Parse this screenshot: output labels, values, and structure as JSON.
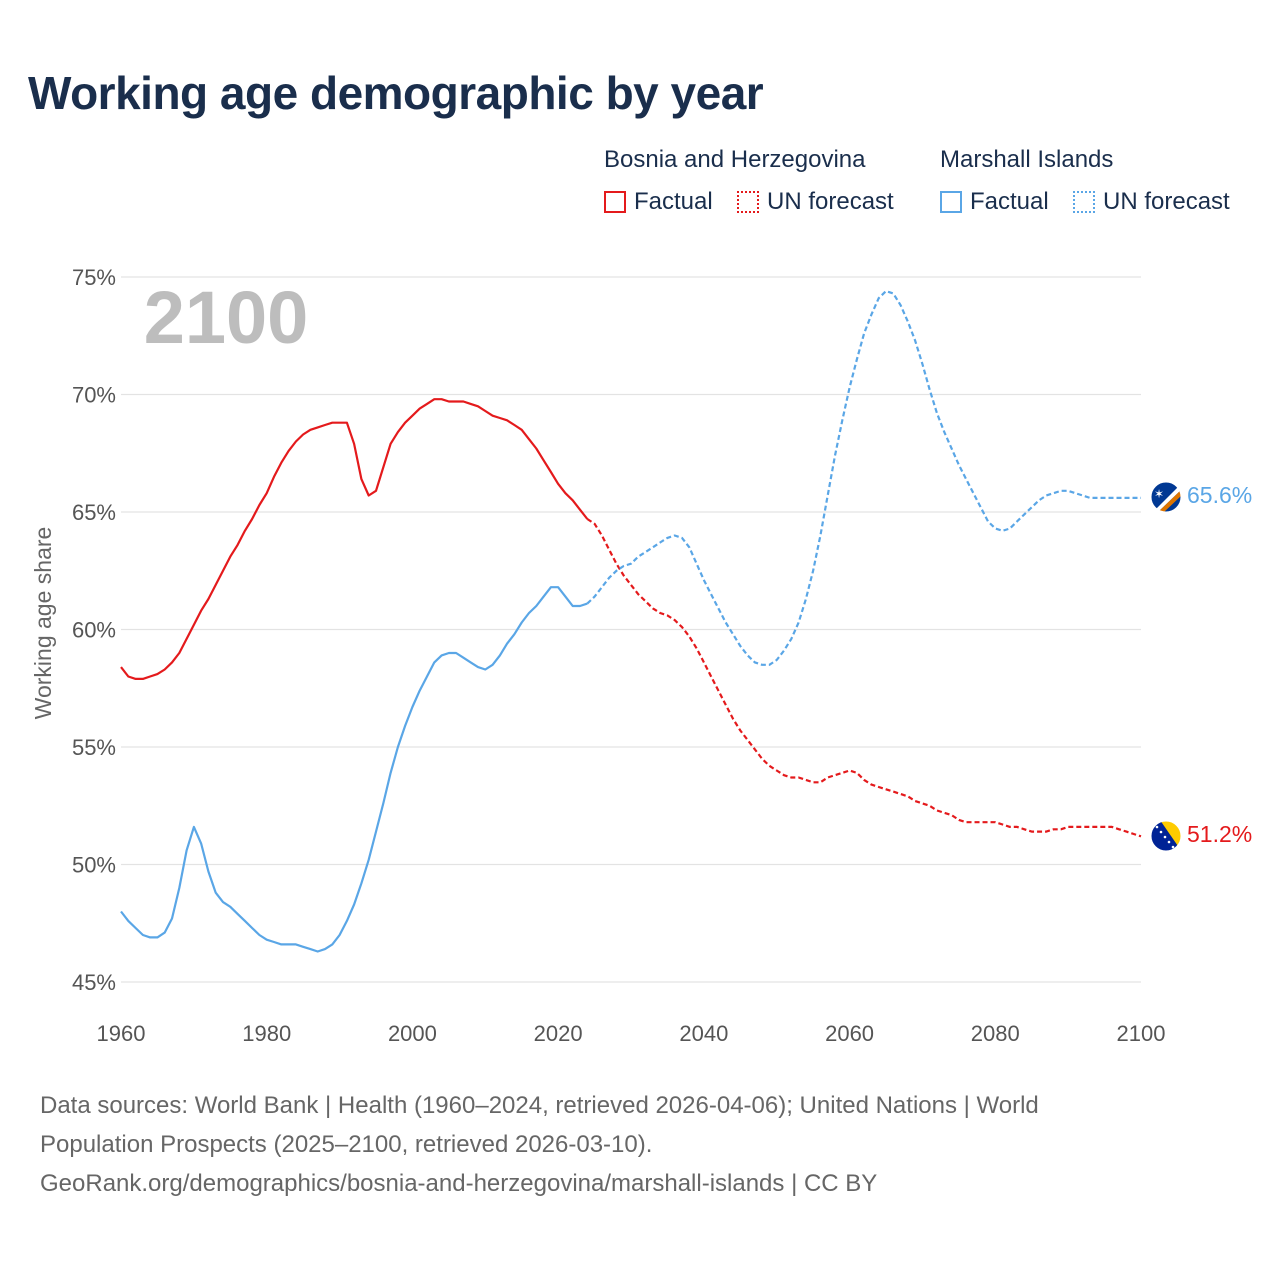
{
  "title": "Working age demographic by year",
  "legend": {
    "groups": [
      {
        "country": "Bosnia and Herzegovina",
        "factual_label": "Factual",
        "forecast_label": "UN forecast",
        "color": "#e41a1c"
      },
      {
        "country": "Marshall Islands",
        "factual_label": "Factual",
        "forecast_label": "UN forecast",
        "color": "#5aa6e6"
      }
    ]
  },
  "year_display": "2100",
  "sources": {
    "line1": "Data sources: World Bank | Health (1960–2024, retrieved 2026-04-06); United Nations | World",
    "line2": "Population Prospects (2025–2100, retrieved 2026-03-10).",
    "line3": "GeoRank.org/demographics/bosnia-and-herzegovina/marshall-islands | CC BY"
  },
  "chart_data": {
    "type": "line",
    "title": "Working age demographic by year",
    "xlabel": "",
    "ylabel": "Working age share",
    "xlim": [
      1960,
      2100
    ],
    "ylim": [
      45,
      75
    ],
    "x_ticks": [
      1960,
      1980,
      2000,
      2020,
      2040,
      2060,
      2080,
      2100
    ],
    "y_ticks": [
      45,
      50,
      55,
      60,
      65,
      70,
      75
    ],
    "y_tick_labels": [
      "45%",
      "50%",
      "55%",
      "60%",
      "65%",
      "70%",
      "75%"
    ],
    "grid": true,
    "factual_end_year": 2024,
    "series": [
      {
        "name": "Bosnia and Herzegovina",
        "color": "#e41a1c",
        "end_label": "51.2%",
        "flag": "bosnia-and-herzegovina",
        "points": [
          [
            1960,
            58.4
          ],
          [
            1961,
            58.0
          ],
          [
            1962,
            57.9
          ],
          [
            1963,
            57.9
          ],
          [
            1964,
            58.0
          ],
          [
            1965,
            58.1
          ],
          [
            1966,
            58.3
          ],
          [
            1967,
            58.6
          ],
          [
            1968,
            59.0
          ],
          [
            1969,
            59.6
          ],
          [
            1970,
            60.2
          ],
          [
            1971,
            60.8
          ],
          [
            1972,
            61.3
          ],
          [
            1973,
            61.9
          ],
          [
            1974,
            62.5
          ],
          [
            1975,
            63.1
          ],
          [
            1976,
            63.6
          ],
          [
            1977,
            64.2
          ],
          [
            1978,
            64.7
          ],
          [
            1979,
            65.3
          ],
          [
            1980,
            65.8
          ],
          [
            1981,
            66.5
          ],
          [
            1982,
            67.1
          ],
          [
            1983,
            67.6
          ],
          [
            1984,
            68.0
          ],
          [
            1985,
            68.3
          ],
          [
            1986,
            68.5
          ],
          [
            1987,
            68.6
          ],
          [
            1988,
            68.7
          ],
          [
            1989,
            68.8
          ],
          [
            1990,
            68.8
          ],
          [
            1991,
            68.8
          ],
          [
            1992,
            67.9
          ],
          [
            1993,
            66.4
          ],
          [
            1994,
            65.7
          ],
          [
            1995,
            65.9
          ],
          [
            1996,
            66.9
          ],
          [
            1997,
            67.9
          ],
          [
            1998,
            68.4
          ],
          [
            1999,
            68.8
          ],
          [
            2000,
            69.1
          ],
          [
            2001,
            69.4
          ],
          [
            2002,
            69.6
          ],
          [
            2003,
            69.8
          ],
          [
            2004,
            69.8
          ],
          [
            2005,
            69.7
          ],
          [
            2006,
            69.7
          ],
          [
            2007,
            69.7
          ],
          [
            2008,
            69.6
          ],
          [
            2009,
            69.5
          ],
          [
            2010,
            69.3
          ],
          [
            2011,
            69.1
          ],
          [
            2012,
            69.0
          ],
          [
            2013,
            68.9
          ],
          [
            2014,
            68.7
          ],
          [
            2015,
            68.5
          ],
          [
            2016,
            68.1
          ],
          [
            2017,
            67.7
          ],
          [
            2018,
            67.2
          ],
          [
            2019,
            66.7
          ],
          [
            2020,
            66.2
          ],
          [
            2021,
            65.8
          ],
          [
            2022,
            65.5
          ],
          [
            2023,
            65.1
          ],
          [
            2024,
            64.7
          ],
          [
            2025,
            64.5
          ],
          [
            2026,
            64.0
          ],
          [
            2027,
            63.4
          ],
          [
            2028,
            62.8
          ],
          [
            2029,
            62.3
          ],
          [
            2030,
            61.9
          ],
          [
            2031,
            61.5
          ],
          [
            2032,
            61.2
          ],
          [
            2033,
            60.9
          ],
          [
            2034,
            60.7
          ],
          [
            2035,
            60.6
          ],
          [
            2036,
            60.4
          ],
          [
            2037,
            60.1
          ],
          [
            2038,
            59.7
          ],
          [
            2039,
            59.2
          ],
          [
            2040,
            58.6
          ],
          [
            2041,
            58.0
          ],
          [
            2042,
            57.4
          ],
          [
            2043,
            56.8
          ],
          [
            2044,
            56.2
          ],
          [
            2045,
            55.7
          ],
          [
            2046,
            55.3
          ],
          [
            2047,
            54.9
          ],
          [
            2048,
            54.5
          ],
          [
            2049,
            54.2
          ],
          [
            2050,
            54.0
          ],
          [
            2051,
            53.8
          ],
          [
            2052,
            53.7
          ],
          [
            2053,
            53.7
          ],
          [
            2054,
            53.6
          ],
          [
            2055,
            53.5
          ],
          [
            2056,
            53.5
          ],
          [
            2057,
            53.7
          ],
          [
            2058,
            53.8
          ],
          [
            2059,
            53.9
          ],
          [
            2060,
            54.0
          ],
          [
            2061,
            53.9
          ],
          [
            2062,
            53.6
          ],
          [
            2063,
            53.4
          ],
          [
            2064,
            53.3
          ],
          [
            2065,
            53.2
          ],
          [
            2066,
            53.1
          ],
          [
            2067,
            53.0
          ],
          [
            2068,
            52.9
          ],
          [
            2069,
            52.7
          ],
          [
            2070,
            52.6
          ],
          [
            2071,
            52.5
          ],
          [
            2072,
            52.3
          ],
          [
            2073,
            52.2
          ],
          [
            2074,
            52.1
          ],
          [
            2075,
            51.9
          ],
          [
            2076,
            51.8
          ],
          [
            2077,
            51.8
          ],
          [
            2078,
            51.8
          ],
          [
            2079,
            51.8
          ],
          [
            2080,
            51.8
          ],
          [
            2081,
            51.7
          ],
          [
            2082,
            51.6
          ],
          [
            2083,
            51.6
          ],
          [
            2084,
            51.5
          ],
          [
            2085,
            51.4
          ],
          [
            2086,
            51.4
          ],
          [
            2087,
            51.4
          ],
          [
            2088,
            51.5
          ],
          [
            2089,
            51.5
          ],
          [
            2090,
            51.6
          ],
          [
            2091,
            51.6
          ],
          [
            2092,
            51.6
          ],
          [
            2093,
            51.6
          ],
          [
            2094,
            51.6
          ],
          [
            2095,
            51.6
          ],
          [
            2096,
            51.6
          ],
          [
            2097,
            51.5
          ],
          [
            2098,
            51.4
          ],
          [
            2099,
            51.3
          ],
          [
            2100,
            51.2
          ]
        ]
      },
      {
        "name": "Marshall Islands",
        "color": "#5aa6e6",
        "end_label": "65.6%",
        "flag": "marshall-islands",
        "points": [
          [
            1960,
            48.0
          ],
          [
            1961,
            47.6
          ],
          [
            1962,
            47.3
          ],
          [
            1963,
            47.0
          ],
          [
            1964,
            46.9
          ],
          [
            1965,
            46.9
          ],
          [
            1966,
            47.1
          ],
          [
            1967,
            47.7
          ],
          [
            1968,
            49.0
          ],
          [
            1969,
            50.6
          ],
          [
            1970,
            51.6
          ],
          [
            1971,
            50.9
          ],
          [
            1972,
            49.7
          ],
          [
            1973,
            48.8
          ],
          [
            1974,
            48.4
          ],
          [
            1975,
            48.2
          ],
          [
            1976,
            47.9
          ],
          [
            1977,
            47.6
          ],
          [
            1978,
            47.3
          ],
          [
            1979,
            47.0
          ],
          [
            1980,
            46.8
          ],
          [
            1981,
            46.7
          ],
          [
            1982,
            46.6
          ],
          [
            1983,
            46.6
          ],
          [
            1984,
            46.6
          ],
          [
            1985,
            46.5
          ],
          [
            1986,
            46.4
          ],
          [
            1987,
            46.3
          ],
          [
            1988,
            46.4
          ],
          [
            1989,
            46.6
          ],
          [
            1990,
            47.0
          ],
          [
            1991,
            47.6
          ],
          [
            1992,
            48.3
          ],
          [
            1993,
            49.2
          ],
          [
            1994,
            50.2
          ],
          [
            1995,
            51.4
          ],
          [
            1996,
            52.6
          ],
          [
            1997,
            53.9
          ],
          [
            1998,
            55.0
          ],
          [
            1999,
            55.9
          ],
          [
            2000,
            56.7
          ],
          [
            2001,
            57.4
          ],
          [
            2002,
            58.0
          ],
          [
            2003,
            58.6
          ],
          [
            2004,
            58.9
          ],
          [
            2005,
            59.0
          ],
          [
            2006,
            59.0
          ],
          [
            2007,
            58.8
          ],
          [
            2008,
            58.6
          ],
          [
            2009,
            58.4
          ],
          [
            2010,
            58.3
          ],
          [
            2011,
            58.5
          ],
          [
            2012,
            58.9
          ],
          [
            2013,
            59.4
          ],
          [
            2014,
            59.8
          ],
          [
            2015,
            60.3
          ],
          [
            2016,
            60.7
          ],
          [
            2017,
            61.0
          ],
          [
            2018,
            61.4
          ],
          [
            2019,
            61.8
          ],
          [
            2020,
            61.8
          ],
          [
            2021,
            61.4
          ],
          [
            2022,
            61.0
          ],
          [
            2023,
            61.0
          ],
          [
            2024,
            61.1
          ],
          [
            2025,
            61.4
          ],
          [
            2026,
            61.8
          ],
          [
            2027,
            62.2
          ],
          [
            2028,
            62.5
          ],
          [
            2029,
            62.7
          ],
          [
            2030,
            62.8
          ],
          [
            2031,
            63.1
          ],
          [
            2032,
            63.3
          ],
          [
            2033,
            63.5
          ],
          [
            2034,
            63.7
          ],
          [
            2035,
            63.9
          ],
          [
            2036,
            64.0
          ],
          [
            2037,
            63.9
          ],
          [
            2038,
            63.5
          ],
          [
            2039,
            62.8
          ],
          [
            2040,
            62.1
          ],
          [
            2041,
            61.5
          ],
          [
            2042,
            60.9
          ],
          [
            2043,
            60.3
          ],
          [
            2044,
            59.8
          ],
          [
            2045,
            59.3
          ],
          [
            2046,
            58.9
          ],
          [
            2047,
            58.6
          ],
          [
            2048,
            58.5
          ],
          [
            2049,
            58.5
          ],
          [
            2050,
            58.7
          ],
          [
            2051,
            59.1
          ],
          [
            2052,
            59.6
          ],
          [
            2053,
            60.3
          ],
          [
            2054,
            61.3
          ],
          [
            2055,
            62.5
          ],
          [
            2056,
            64.0
          ],
          [
            2057,
            65.7
          ],
          [
            2058,
            67.4
          ],
          [
            2059,
            68.9
          ],
          [
            2060,
            70.3
          ],
          [
            2061,
            71.5
          ],
          [
            2062,
            72.6
          ],
          [
            2063,
            73.4
          ],
          [
            2064,
            74.1
          ],
          [
            2065,
            74.4
          ],
          [
            2066,
            74.3
          ],
          [
            2067,
            73.8
          ],
          [
            2068,
            73.1
          ],
          [
            2069,
            72.3
          ],
          [
            2070,
            71.3
          ],
          [
            2071,
            70.2
          ],
          [
            2072,
            69.2
          ],
          [
            2073,
            68.4
          ],
          [
            2074,
            67.7
          ],
          [
            2075,
            67.0
          ],
          [
            2076,
            66.4
          ],
          [
            2077,
            65.8
          ],
          [
            2078,
            65.2
          ],
          [
            2079,
            64.6
          ],
          [
            2080,
            64.3
          ],
          [
            2081,
            64.2
          ],
          [
            2082,
            64.3
          ],
          [
            2083,
            64.6
          ],
          [
            2084,
            64.9
          ],
          [
            2085,
            65.2
          ],
          [
            2086,
            65.5
          ],
          [
            2087,
            65.7
          ],
          [
            2088,
            65.8
          ],
          [
            2089,
            65.9
          ],
          [
            2090,
            65.9
          ],
          [
            2091,
            65.8
          ],
          [
            2092,
            65.7
          ],
          [
            2093,
            65.6
          ],
          [
            2094,
            65.6
          ],
          [
            2095,
            65.6
          ],
          [
            2096,
            65.6
          ],
          [
            2097,
            65.6
          ],
          [
            2098,
            65.6
          ],
          [
            2099,
            65.6
          ],
          [
            2100,
            65.6
          ]
        ]
      }
    ]
  }
}
